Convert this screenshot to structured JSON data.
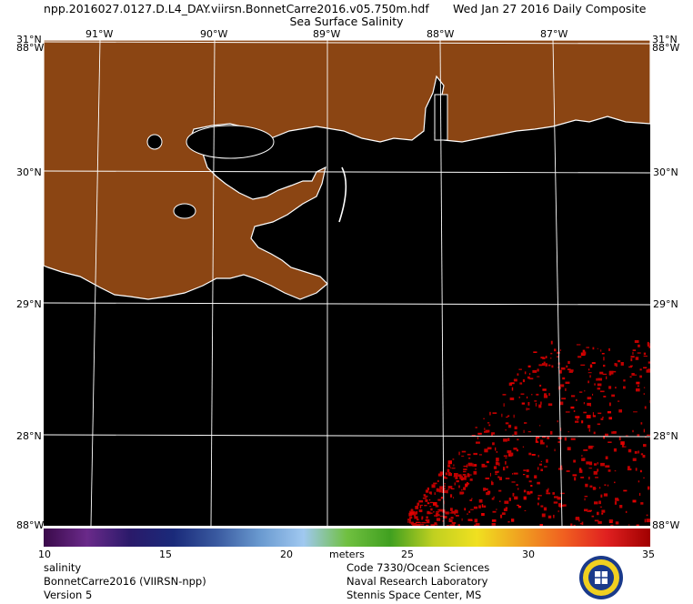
{
  "header": {
    "file_name": "npp.2016027.0127.D.L4_DAY.viirsn.BonnetCarre2016.v05.750m.hdf",
    "date_label": "Wed Jan 27 2016 Daily Composite",
    "product_title": "Sea Surface Salinity"
  },
  "map": {
    "lon_labels": [
      "91°W",
      "90°W",
      "89°W",
      "88°W",
      "87°W"
    ],
    "lat_labels": [
      "31°N",
      "30°N",
      "29°N",
      "28°N"
    ],
    "corner_labels": {
      "top_left_lat": "31°N",
      "top_left_lon": "88°W",
      "top_right_lat": "31°N",
      "top_right_lon": "88°W",
      "bottom_left": "88°W",
      "bottom_right": "88°W"
    },
    "colors": {
      "land": "#8b4513",
      "water": "#000000",
      "coast": "#ffffff",
      "grid": "#ffffff",
      "high_salinity": "#c00000"
    }
  },
  "colorbar": {
    "ticks": [
      "10",
      "15",
      "20",
      "25",
      "30",
      "35"
    ],
    "units": "meters",
    "stops": [
      "#3a0a4a",
      "#6a2a8a",
      "#2a1a6a",
      "#1a2a7a",
      "#3a5aa0",
      "#6a9ad0",
      "#a0c8f0",
      "#70c040",
      "#40a020",
      "#c0d020",
      "#f0e020",
      "#f0a020",
      "#f06020",
      "#e02020",
      "#a00000"
    ]
  },
  "footer": {
    "left": [
      "salinity",
      "BonnetCarre2016 (VIIRSN-npp)",
      "Version 5"
    ],
    "right": [
      "Code 7330/Ocean Sciences",
      "Naval Research Laboratory",
      "Stennis Space Center, MS"
    ]
  }
}
